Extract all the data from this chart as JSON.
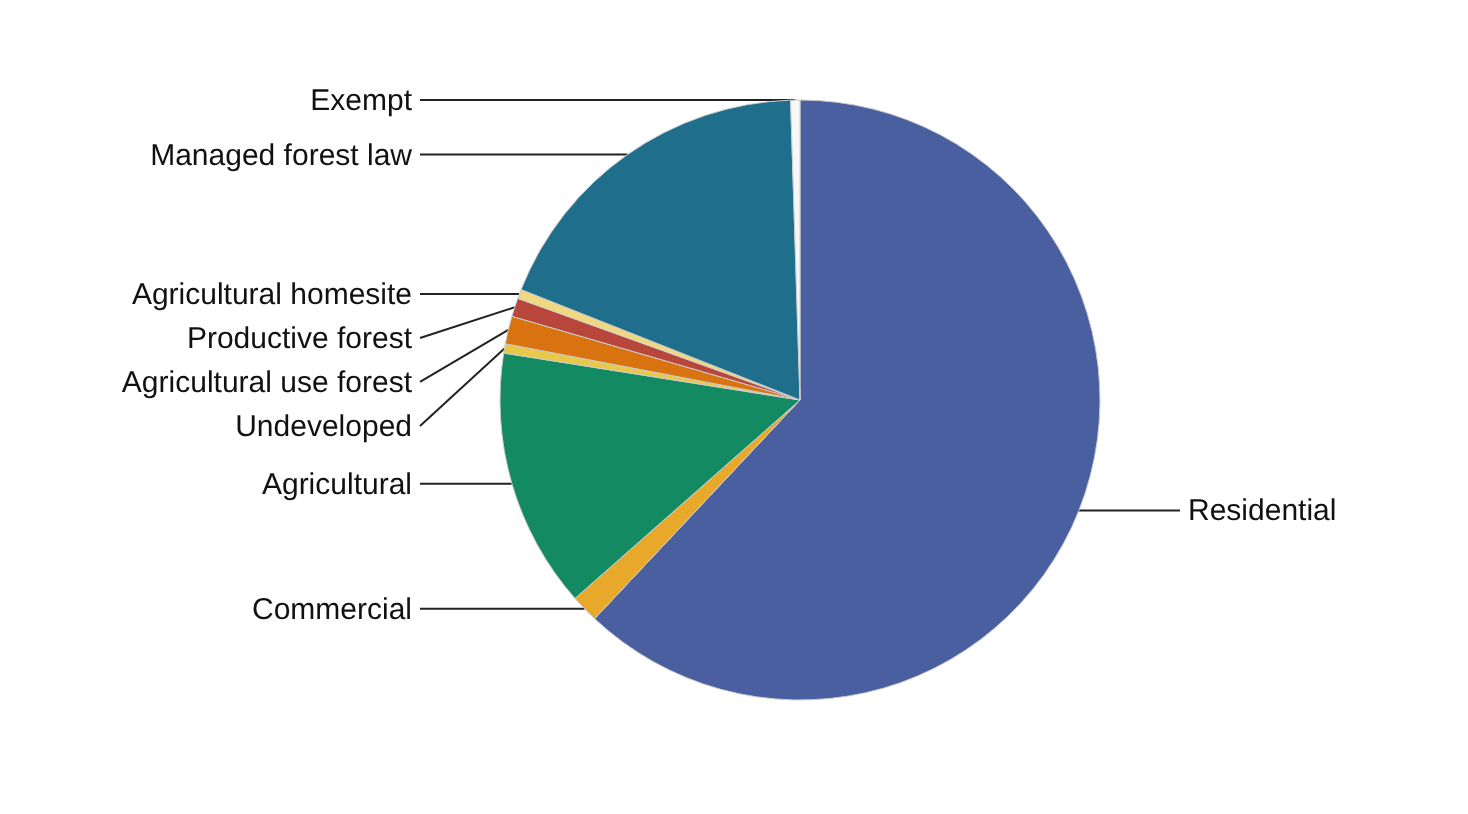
{
  "chart_data": {
    "type": "pie",
    "categories": [
      "Residential",
      "Commercial",
      "Agricultural",
      "Undeveloped",
      "Agricultural use forest",
      "Productive forest",
      "Agricultural homesite",
      "Managed forest law",
      "Exempt"
    ],
    "values": [
      62,
      1.5,
      14,
      0.5,
      1.5,
      1,
      0.5,
      18.5,
      0.5
    ],
    "colors": [
      "#4a5fa0",
      "#e8a92b",
      "#138a62",
      "#e8c84a",
      "#d9730f",
      "#b8463a",
      "#f0d880",
      "#1f6e8c",
      "#f7f7f7"
    ]
  }
}
